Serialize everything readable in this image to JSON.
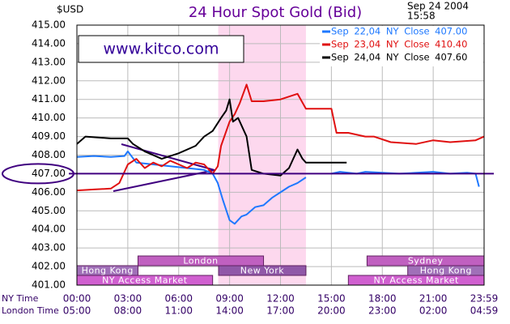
{
  "chart_data": {
    "type": "line",
    "title": "24 Hour Spot Gold (Bid)",
    "y_unit": "$USD",
    "timestamp": [
      "Sep 24 2004",
      "15:58"
    ],
    "annotation": "www.kitco.com",
    "xlim": [
      0,
      24
    ],
    "xticks": [
      {
        "value": 0,
        "label": "00:00"
      },
      {
        "value": 3,
        "label": "03:00"
      },
      {
        "value": 6,
        "label": "06:00"
      },
      {
        "value": 9,
        "label": "09:00"
      },
      {
        "value": 12,
        "label": "12:00"
      },
      {
        "value": 15,
        "label": "15:00"
      },
      {
        "value": 18,
        "label": "18:00"
      },
      {
        "value": 21,
        "label": "21:00"
      },
      {
        "value": 24,
        "label": "23:59"
      }
    ],
    "x_row_label": "NY Time",
    "x2_row_label": "London Time",
    "x2_tick_labels": [
      "05:00",
      "08:00",
      "11:00",
      "14:00",
      "17:00",
      "20:00",
      "23:00",
      "02:00",
      "04:59"
    ],
    "ylim": [
      401,
      415
    ],
    "yticks": [
      {
        "value": 401,
        "label": "401.00"
      },
      {
        "value": 402,
        "label": "402.00"
      },
      {
        "value": 403,
        "label": "403.00"
      },
      {
        "value": 404,
        "label": "404.00"
      },
      {
        "value": 405,
        "label": "405.00"
      },
      {
        "value": 406,
        "label": "406.00"
      },
      {
        "value": 407,
        "label": "407.00"
      },
      {
        "value": 408,
        "label": "408.00"
      },
      {
        "value": 409,
        "label": "409.00"
      },
      {
        "value": 410,
        "label": "410.00"
      },
      {
        "value": 411,
        "label": "411.00"
      },
      {
        "value": 412,
        "label": "412.00"
      },
      {
        "value": 413,
        "label": "413.00"
      },
      {
        "value": 414,
        "label": "414.00"
      },
      {
        "value": 415,
        "label": "415.00"
      }
    ],
    "grid": true,
    "highlight_range": [
      8.33,
      13.5
    ],
    "highlight_color": "#fdd8ee",
    "ref_line": 407,
    "ref_color": "#400080",
    "legend": "upper right",
    "series": [
      {
        "name": "Sep 22,04 NY Close 407.00",
        "color": "#1e78ff",
        "x": [
          0,
          1,
          2,
          2.8,
          3,
          3.5,
          4.5,
          5.5,
          6.5,
          7.5,
          8,
          8.3,
          8.6,
          9,
          9.3,
          9.7,
          10,
          10.5,
          11,
          11.5,
          12,
          12.5,
          13,
          13.5,
          13.6,
          15,
          15.5,
          16.5,
          17,
          18,
          19,
          20,
          21,
          22,
          23,
          23.5,
          23.7
        ],
        "values": [
          407.9,
          407.95,
          407.9,
          407.95,
          408.2,
          407.6,
          407.5,
          407.4,
          407.3,
          407.2,
          407.0,
          406.5,
          405.6,
          404.5,
          404.3,
          404.7,
          404.8,
          405.2,
          405.3,
          405.7,
          406.0,
          406.3,
          406.5,
          406.8,
          null,
          407.0,
          407.1,
          407.0,
          407.1,
          407.05,
          407.0,
          407.05,
          407.1,
          407.0,
          407.05,
          407.0,
          406.3
        ]
      },
      {
        "name": "Sep 23,04 NY Close 410.40",
        "color": "#e01010",
        "x": [
          0,
          1,
          2,
          2.5,
          3,
          3.5,
          4,
          4.5,
          5,
          5.5,
          6,
          6.5,
          7,
          7.5,
          8,
          8.3,
          8.5,
          9,
          9.3,
          9.6,
          10,
          10.3,
          11,
          12,
          13,
          13.5,
          14,
          15,
          15.3,
          16,
          17,
          17.5,
          18.5,
          20,
          21,
          22,
          23.5,
          24
        ],
        "values": [
          406.1,
          406.15,
          406.2,
          406.5,
          407.5,
          407.8,
          407.3,
          407.6,
          407.4,
          407.7,
          407.5,
          407.3,
          407.6,
          407.5,
          407.0,
          407.4,
          408.5,
          409.8,
          410.2,
          410.8,
          411.8,
          410.9,
          410.9,
          411.0,
          411.3,
          410.5,
          410.5,
          410.5,
          409.2,
          409.2,
          409.0,
          409.0,
          408.7,
          408.6,
          408.8,
          408.7,
          408.8,
          409.0
        ]
      },
      {
        "name": "Sep 24,04 NY Close 407.60",
        "color": "#000000",
        "x": [
          0,
          0.5,
          2,
          3,
          3.3,
          4,
          5,
          6,
          7,
          7.5,
          8,
          8.5,
          8.8,
          9,
          9.2,
          9.5,
          10,
          10.3,
          11,
          12,
          12.5,
          13,
          13.3,
          13.5,
          14,
          15,
          15.9
        ],
        "values": [
          408.6,
          409.0,
          408.9,
          408.9,
          408.6,
          408.2,
          407.8,
          408.1,
          408.5,
          409.0,
          409.3,
          410.0,
          410.4,
          411.0,
          409.8,
          410.0,
          409.0,
          407.2,
          407.0,
          406.9,
          407.3,
          408.3,
          407.8,
          407.6,
          407.6,
          407.6,
          407.6
        ]
      }
    ],
    "sessions": [
      {
        "label": "Hong Kong",
        "start": 0,
        "end": 3.6,
        "color": "#a070b8"
      },
      {
        "label": "London",
        "start": 3.6,
        "end": 11,
        "color": "#c060c0"
      },
      {
        "label": "New York",
        "start": 8.35,
        "end": 13.5,
        "color": "#9058a8"
      },
      {
        "label": "NY Access Market",
        "start": 0,
        "end": 8,
        "color": "#d060d0"
      },
      {
        "label": "NY Access Market",
        "start": 16,
        "end": 24,
        "color": "#d060d0"
      },
      {
        "label": "Sydney",
        "start": 17.1,
        "end": 24,
        "color": "#c060c0"
      },
      {
        "label": "Hong Kong",
        "start": 19.5,
        "end": 24,
        "color": "#a070b8"
      }
    ]
  }
}
